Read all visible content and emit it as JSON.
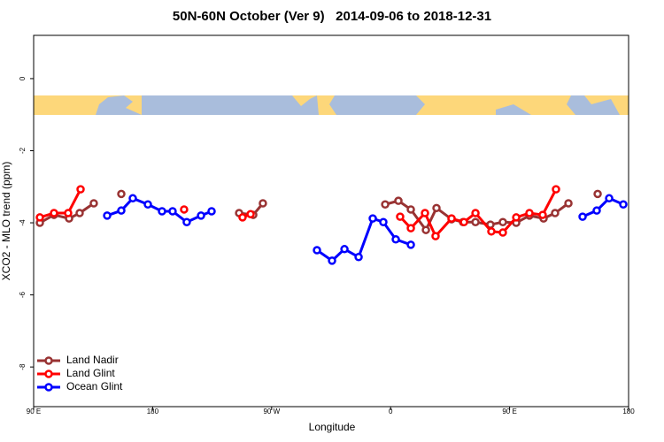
{
  "chart_data": {
    "type": "line",
    "title": "50N-60N October (Ver 9)   2014-09-06 to 2018-12-31",
    "x_label": "Longitude",
    "y_label": "XCO2 - MLO trend (ppm)",
    "xlim": [
      90,
      540
    ],
    "ylim": [
      -9.1,
      1.2
    ],
    "xticks": [
      {
        "value": 90,
        "label": "90 E"
      },
      180,
      {
        "value": 270,
        "label": "90 W"
      },
      {
        "value": 360,
        "label": "0"
      },
      {
        "value": 450,
        "label": "90 E"
      },
      {
        "value": 540,
        "label": "180"
      }
    ],
    "yticks": [
      0,
      -2,
      -4,
      -6,
      -8
    ],
    "legend": "bottom-left",
    "series": [
      {
        "name": "Land Nadir",
        "color": "#993333",
        "x": [
          94.7,
          105.4,
          116.8,
          124.8,
          135.5,
          null,
          156.3,
          null,
          245.4,
          256.1,
          263.4,
          null,
          355.9,
          365.9,
          375.3,
          386.7,
          394.7,
          406.1,
          414.8,
          424.2,
          435.5,
          444.9,
          455,
          465,
          475.7,
          484.4,
          494.5,
          null,
          516.6
        ],
        "values": [
          -4.0,
          -3.78,
          -3.88,
          -3.73,
          -3.46,
          null,
          -3.2,
          null,
          -3.73,
          -3.78,
          -3.46,
          null,
          -3.49,
          -3.39,
          -3.63,
          -4.2,
          -3.59,
          -3.9,
          -3.98,
          -3.98,
          -4.05,
          -3.98,
          -4.0,
          -3.8,
          -3.88,
          -3.73,
          -3.46,
          null,
          -3.2
        ]
      },
      {
        "name": "Land Glint",
        "color": "#ff0000",
        "x": [
          94.7,
          105.4,
          116.1,
          125.5,
          null,
          203.8,
          null,
          248.0,
          254.1,
          null,
          367.2,
          375.3,
          386,
          394,
          406.1,
          415.5,
          424.2,
          436.2,
          444.9,
          455,
          465,
          475,
          485.1
        ],
        "values": [
          -3.85,
          -3.73,
          -3.73,
          -3.07,
          null,
          -3.63,
          null,
          -3.85,
          -3.76,
          null,
          -3.83,
          -4.15,
          -3.73,
          -4.37,
          -3.88,
          -3.98,
          -3.73,
          -4.24,
          -4.27,
          -3.85,
          -3.73,
          -3.78,
          -3.07
        ]
      },
      {
        "name": "Ocean Glint",
        "color": "#0000ff",
        "x": [
          145.6,
          156.3,
          165,
          176.4,
          187.1,
          195.1,
          205.8,
          216.6,
          224.6,
          null,
          304.3,
          315.7,
          325.1,
          335.8,
          346.5,
          354.5,
          363.9,
          375.3,
          null,
          505.2,
          515.9,
          525.3,
          536
        ],
        "values": [
          -3.8,
          -3.66,
          -3.32,
          -3.49,
          -3.68,
          -3.68,
          -3.98,
          -3.8,
          -3.68,
          null,
          -4.76,
          -5.05,
          -4.73,
          -4.95,
          -3.88,
          -3.98,
          -4.46,
          -4.61,
          null,
          -3.83,
          -3.66,
          -3.32,
          -3.49
        ]
      }
    ]
  }
}
